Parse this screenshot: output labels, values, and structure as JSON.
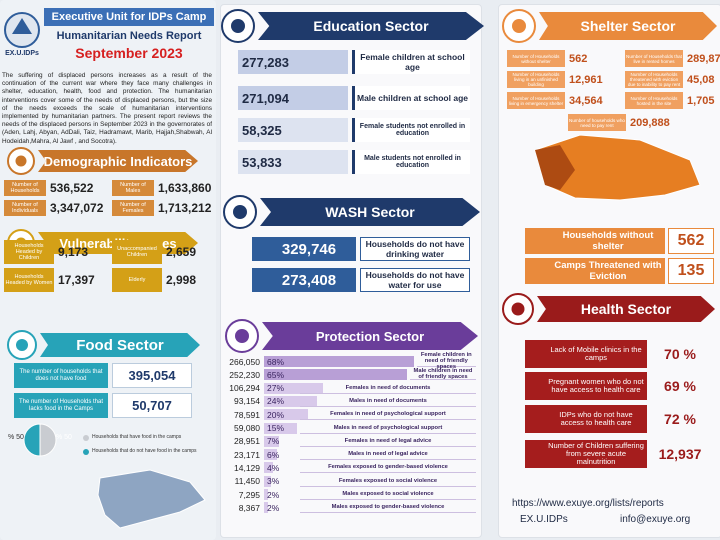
{
  "header": {
    "logo": "EX.U.IDPs",
    "unit": "Executive Unit for IDPs Camp",
    "report": "Humanitarian Needs Report",
    "month": "September 2023"
  },
  "intro": "The suffering of displaced persons increases as a result of the continuation of the current war where they face many challenges in shelter, education, health, food and protection. The humanitarian interventions cover some of the needs of displaced persons, but the size of the needs exceeds the scale of humanitarian interventions implemented by humanitarian partners. The present report reviews the needs of the displaced persons in September 2023 in the governorates of (Aden, Lahj, Abyan, AdDali, Taiz, Hadramawt, Marib, Hajjah,Shabwah, Al Hodeidah,Mahra, Al Jawf , and Socotra).",
  "demographic": {
    "title": "Demographic Indicators",
    "items": [
      {
        "label": "Number of Households",
        "value": "536,522"
      },
      {
        "label": "Number of Males",
        "value": "1,633,860"
      },
      {
        "label": "Number of Individuals",
        "value": "3,347,072"
      },
      {
        "label": "Number of Females",
        "value": "1,713,212"
      }
    ]
  },
  "vulnerability": {
    "title": "Vulnerability cases",
    "items": [
      {
        "label": "Households Headed by Children",
        "value": "9,173"
      },
      {
        "label": "Unaccompanied Children",
        "value": "2,659"
      },
      {
        "label": "Households Headed by Women",
        "value": "17,397"
      },
      {
        "label": "Elderly",
        "value": "2,998"
      }
    ]
  },
  "food": {
    "title": "Food Sector",
    "items": [
      {
        "label": "The number of households that does not have food",
        "value": "395,054"
      },
      {
        "label": "The number of Households that lacks food in the Camps",
        "value": "50,707"
      }
    ],
    "pie": {
      "values": [
        50,
        50
      ],
      "value_labels": [
        "% 50",
        "% 50"
      ],
      "colors": [
        "#c9ccd1",
        "#27a3b8"
      ],
      "legend": [
        "Households that have food in the camps",
        "Households that do not have food in the camps"
      ]
    }
  },
  "education": {
    "title": "Education Sector",
    "items": [
      {
        "value": "277,283",
        "label": "Female children at school age"
      },
      {
        "value": "271,094",
        "label": "Male children at school age"
      },
      {
        "value": "58,325",
        "label": "Female students not enrolled in education"
      },
      {
        "value": "53,833",
        "label": "Male students not enrolled in education"
      }
    ]
  },
  "wash": {
    "title": "WASH Sector",
    "items": [
      {
        "value": "329,746",
        "label": "Households do not have drinking water"
      },
      {
        "value": "273,408",
        "label": "Households do not have water for use"
      }
    ]
  },
  "protection": {
    "title": "Protection Sector",
    "rows": [
      {
        "value": "266,050",
        "percent": 68,
        "percent_label": "68%",
        "label": "Female children in need of friendly spaces"
      },
      {
        "value": "252,230",
        "percent": 65,
        "percent_label": "65%",
        "label": "Male children in need of friendly spaces"
      },
      {
        "value": "106,294",
        "percent": 27,
        "percent_label": "27%",
        "label": "Females in need of documents"
      },
      {
        "value": "93,154",
        "percent": 24,
        "percent_label": "24%",
        "label": "Males in need of documents"
      },
      {
        "value": "78,591",
        "percent": 20,
        "percent_label": "20%",
        "label": "Females in need of psychological support"
      },
      {
        "value": "59,080",
        "percent": 15,
        "percent_label": "15%",
        "label": "Males in need of psychological support"
      },
      {
        "value": "28,951",
        "percent": 7,
        "percent_label": "7%",
        "label": "Females in need of legal advice"
      },
      {
        "value": "23,171",
        "percent": 6,
        "percent_label": "6%",
        "label": "Males in need of legal advice"
      },
      {
        "value": "14,129",
        "percent": 4,
        "percent_label": "4%",
        "label": "Females exposed to gender-based violence"
      },
      {
        "value": "11,450",
        "percent": 3,
        "percent_label": "3%",
        "label": "Females exposed to social violence"
      },
      {
        "value": "7,295",
        "percent": 2,
        "percent_label": "2%",
        "label": "Males exposed to social violence"
      },
      {
        "value": "8,367",
        "percent": 2,
        "percent_label": "2%",
        "label": "Males exposed to gender-based violence"
      }
    ]
  },
  "shelter": {
    "title": "Shelter Sector",
    "grid": [
      {
        "label": "Number of Households without shelter",
        "value": "562"
      },
      {
        "label": "Number of Households that live in rented homes",
        "value": "289,87"
      },
      {
        "label": "Number of Households living in an unfinished building",
        "value": "12,961"
      },
      {
        "label": "Number of Households threatened with eviction due to inability to pay rent",
        "value": "45,08"
      },
      {
        "label": "Number of Households living in emergency shelter",
        "value": "34,564"
      },
      {
        "label": "Number of Households hosted in the site",
        "value": "1,705"
      },
      {
        "label": "Number of households who need to pay rent",
        "value": "209,888"
      }
    ],
    "highlights": [
      {
        "label": "Households without shelter",
        "value": "562"
      },
      {
        "label": "Camps Threatened with Eviction",
        "value": "135"
      }
    ]
  },
  "health": {
    "title": "Health Sector",
    "items": [
      {
        "label": "Lack of Mobile clinics in the camps",
        "value": "70 %"
      },
      {
        "label": "Pregnant women who do not have access to health care",
        "value": "69 %"
      },
      {
        "label": "IDPs who do not have access to health care",
        "value": "72 %"
      },
      {
        "label": "Number of Children suffering from severe acute malnutrition",
        "value": "12,937"
      }
    ]
  },
  "footer": {
    "url": "https://www.exuye.org/lists/reports",
    "account": "EX.U.IDPs",
    "email": "info@exuye.org"
  }
}
